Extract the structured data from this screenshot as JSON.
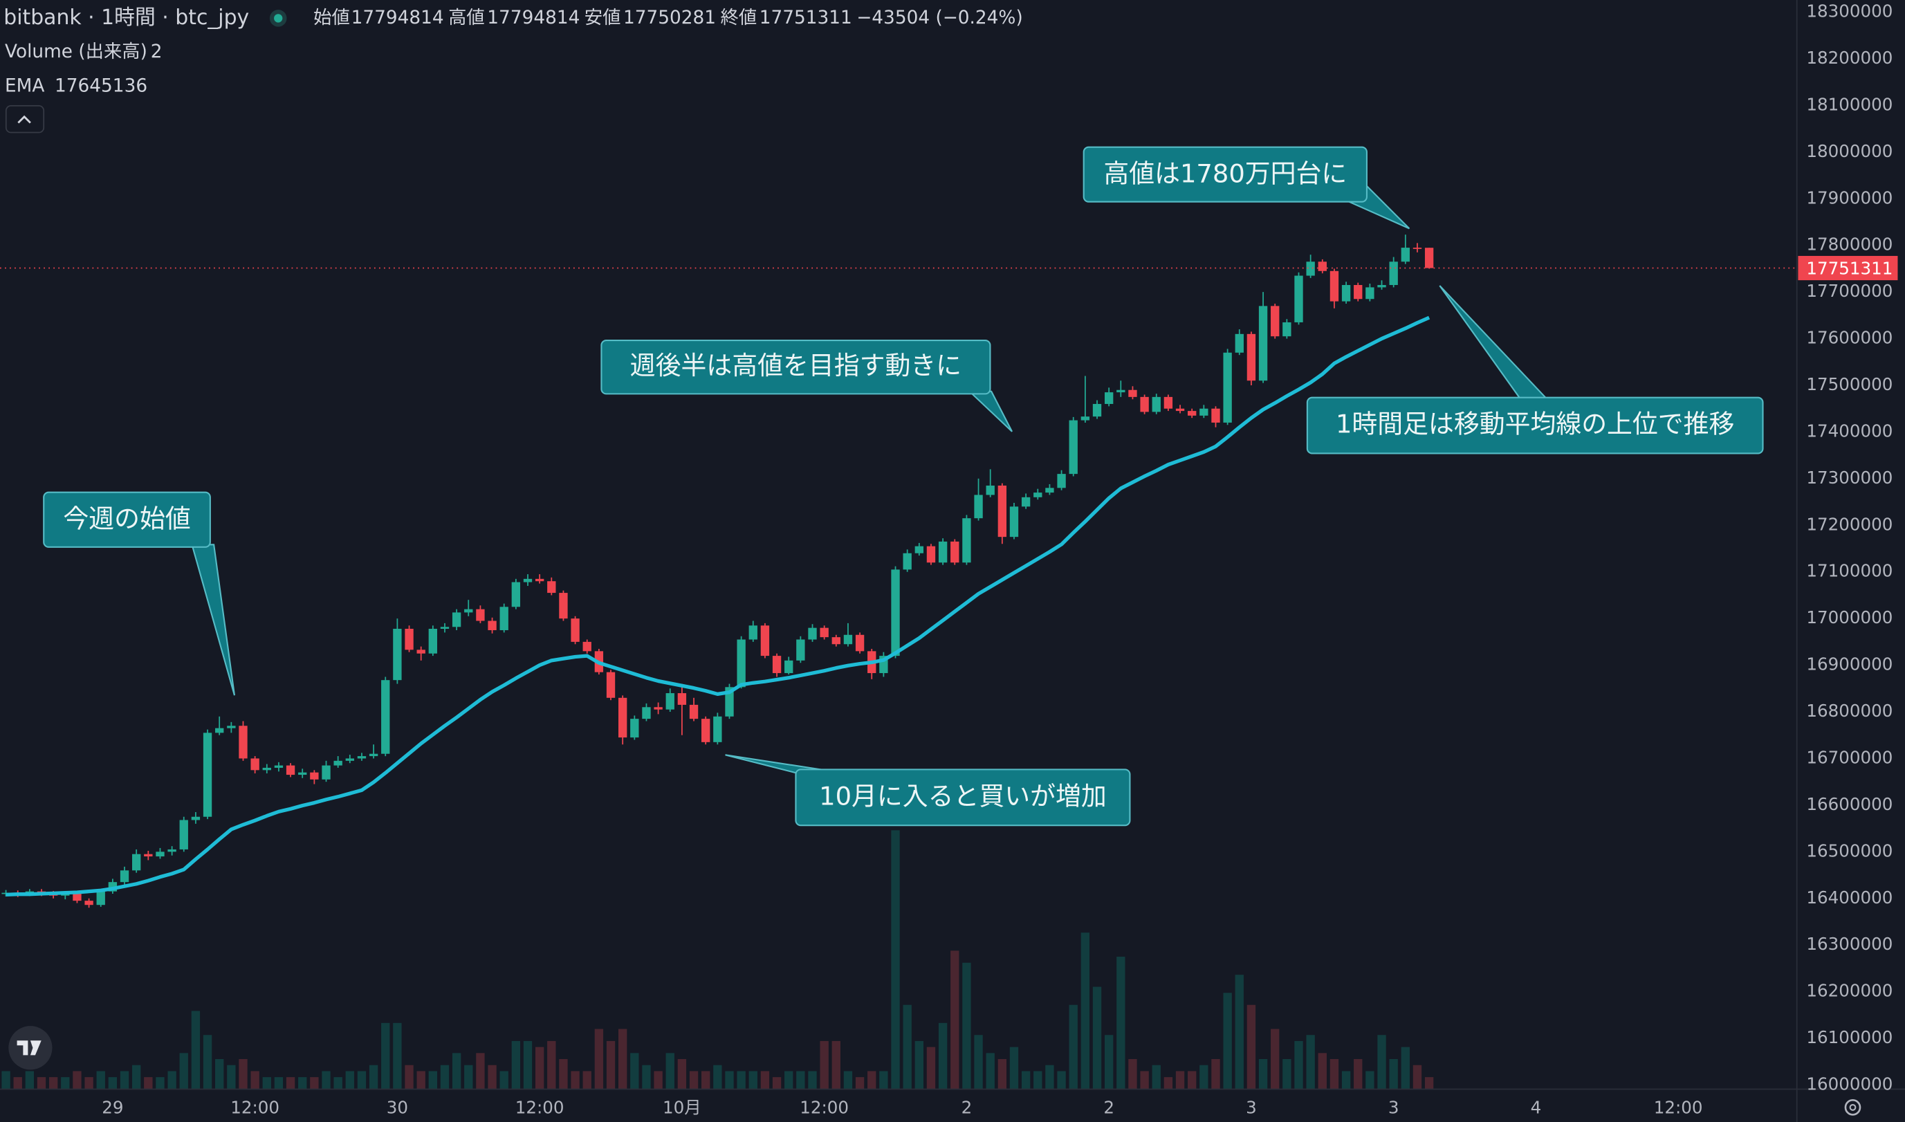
{
  "chart_data": {
    "type": "candlestick",
    "title": "bitbank · 1時間 · btc_jpy",
    "ohlc_labels": [
      "始値",
      "高値",
      "安値",
      "終値"
    ],
    "change": "−43504 (−0.24%)",
    "up_color": "#22ab94",
    "down_color": "#f0454f",
    "grid": false,
    "last_price_line": true,
    "open": [
      16410000,
      16412000,
      16409000,
      16415000,
      16410000,
      16406000,
      16410000,
      16395000,
      16386000,
      16415000,
      16435000,
      16460000,
      16495000,
      16490000,
      16500000,
      16505000,
      16568000,
      16575000,
      16755000,
      16765000,
      16770000,
      16700000,
      16675000,
      16680000,
      16685000,
      16665000,
      16670000,
      16655000,
      16685000,
      16695000,
      16700000,
      16705000,
      16710000,
      16868000,
      16978000,
      16933000,
      16925000,
      16978000,
      16982000,
      17013000,
      17020000,
      16995000,
      16975000,
      17025000,
      17078000,
      17085000,
      17080000,
      17055000,
      17000000,
      16950000,
      16930000,
      16885000,
      16830000,
      16745000,
      16785000,
      16810000,
      16805000,
      16840000,
      16815000,
      16785000,
      16735000,
      16790000,
      16853000,
      16955000,
      16985000,
      16920000,
      16883000,
      16910000,
      16955000,
      16980000,
      16960000,
      16945000,
      16965000,
      16930000,
      16883000,
      16920000,
      17105000,
      17140000,
      17155000,
      17120000,
      17165000,
      17120000,
      17215000,
      17265000,
      17285000,
      17175000,
      17240000,
      17260000,
      17270000,
      17280000,
      17310000,
      17425000,
      17433000,
      17460000,
      17485000,
      17490000,
      17475000,
      17443000,
      17475000,
      17450000,
      17445000,
      17435000,
      17450000,
      17420000,
      17570000,
      17610000,
      17510000,
      17670000,
      17605000,
      17635000,
      17735000,
      17765000,
      17745000,
      17680000,
      17715000,
      17685000,
      17710000,
      17715000,
      17765000,
      17795000,
      17794814
    ],
    "high": [
      16418000,
      16417000,
      16420000,
      16420000,
      16416000,
      16415000,
      16415000,
      16400000,
      16420000,
      16442000,
      16468000,
      16505000,
      16502000,
      16508000,
      16512000,
      16575000,
      16585000,
      16762000,
      16790000,
      16778000,
      16780000,
      16705000,
      16688000,
      16692000,
      16690000,
      16678000,
      16675000,
      16695000,
      16705000,
      16708000,
      16712000,
      16730000,
      16875000,
      17000000,
      16985000,
      16940000,
      16985000,
      16990000,
      17020000,
      17040000,
      17028000,
      17002000,
      17032000,
      17085000,
      17095000,
      17095000,
      17088000,
      17060000,
      17005000,
      16955000,
      16935000,
      16890000,
      16835000,
      16792000,
      16818000,
      16820000,
      16850000,
      16860000,
      16830000,
      16790000,
      16798000,
      16860000,
      16962000,
      16995000,
      16990000,
      16925000,
      16918000,
      16962000,
      16988000,
      16985000,
      16965000,
      16990000,
      16970000,
      16935000,
      16928000,
      17112000,
      17148000,
      17162000,
      17160000,
      17172000,
      17170000,
      17222000,
      17300000,
      17320000,
      17290000,
      17248000,
      17268000,
      17278000,
      17288000,
      17318000,
      17432000,
      17520000,
      17468000,
      17495000,
      17510000,
      17498000,
      17480000,
      17482000,
      17480000,
      17458000,
      17450000,
      17458000,
      17455000,
      17578000,
      17620000,
      17615000,
      17700000,
      17675000,
      17642000,
      17742000,
      17780000,
      17770000,
      17750000,
      17722000,
      17720000,
      17718000,
      17725000,
      17775000,
      17823000,
      17805000,
      17794814
    ],
    "low": [
      16404000,
      16403000,
      16405000,
      16405000,
      16400000,
      16398000,
      16390000,
      16380000,
      16382000,
      16410000,
      16430000,
      16455000,
      16482000,
      16485000,
      16492000,
      16500000,
      16560000,
      16570000,
      16750000,
      16755000,
      16695000,
      16668000,
      16668000,
      16672000,
      16660000,
      16658000,
      16645000,
      16650000,
      16680000,
      16690000,
      16695000,
      16700000,
      16705000,
      16860000,
      16928000,
      16910000,
      16920000,
      16970000,
      16975000,
      17005000,
      16990000,
      16968000,
      16970000,
      17020000,
      17070000,
      17075000,
      17050000,
      16995000,
      16945000,
      16925000,
      16880000,
      16825000,
      16730000,
      16740000,
      16780000,
      16795000,
      16800000,
      16750000,
      16780000,
      16730000,
      16730000,
      16785000,
      16850000,
      16950000,
      16915000,
      16875000,
      16880000,
      16905000,
      16950000,
      16955000,
      16940000,
      16940000,
      16925000,
      16870000,
      16875000,
      16915000,
      17100000,
      17135000,
      17115000,
      17115000,
      17115000,
      17115000,
      17210000,
      17260000,
      17160000,
      17170000,
      17235000,
      17255000,
      17265000,
      17275000,
      17305000,
      17420000,
      17428000,
      17455000,
      17475000,
      17470000,
      17438000,
      17438000,
      17445000,
      17440000,
      17430000,
      17430000,
      17410000,
      17415000,
      17565000,
      17500000,
      17505000,
      17600000,
      17600000,
      17630000,
      17730000,
      17740000,
      17665000,
      17675000,
      17680000,
      17680000,
      17705000,
      17710000,
      17760000,
      17785000,
      17750281
    ],
    "close": [
      16412000,
      16409000,
      16415000,
      16410000,
      16406000,
      16410000,
      16395000,
      16386000,
      16415000,
      16435000,
      16460000,
      16495000,
      16490000,
      16500000,
      16505000,
      16568000,
      16575000,
      16755000,
      16765000,
      16770000,
      16700000,
      16675000,
      16680000,
      16685000,
      16665000,
      16670000,
      16655000,
      16685000,
      16695000,
      16700000,
      16705000,
      16710000,
      16868000,
      16978000,
      16933000,
      16925000,
      16978000,
      16982000,
      17013000,
      17020000,
      16995000,
      16975000,
      17025000,
      17078000,
      17085000,
      17080000,
      17055000,
      17000000,
      16950000,
      16930000,
      16885000,
      16830000,
      16745000,
      16785000,
      16810000,
      16805000,
      16840000,
      16815000,
      16785000,
      16735000,
      16790000,
      16853000,
      16955000,
      16985000,
      16920000,
      16883000,
      16910000,
      16955000,
      16980000,
      16960000,
      16945000,
      16965000,
      16930000,
      16883000,
      16920000,
      17105000,
      17140000,
      17155000,
      17120000,
      17165000,
      17120000,
      17215000,
      17265000,
      17285000,
      17175000,
      17240000,
      17260000,
      17270000,
      17280000,
      17310000,
      17425000,
      17433000,
      17460000,
      17485000,
      17490000,
      17475000,
      17443000,
      17475000,
      17450000,
      17445000,
      17435000,
      17450000,
      17420000,
      17570000,
      17610000,
      17510000,
      17670000,
      17605000,
      17635000,
      17735000,
      17765000,
      17745000,
      17680000,
      17715000,
      17685000,
      17710000,
      17715000,
      17765000,
      17795000,
      17794814,
      17751311
    ],
    "volume": {
      "name": "Volume (出来高)",
      "up_color": "#123d3f",
      "down_color": "#4a2630",
      "values": [
        3,
        2,
        3,
        2,
        2,
        2,
        3,
        2,
        3,
        2,
        3,
        4,
        2,
        2,
        3,
        6,
        13,
        9,
        5,
        4,
        5,
        3,
        2,
        2,
        2,
        2,
        2,
        3,
        2,
        3,
        3,
        4,
        11,
        11,
        4,
        3,
        3,
        4,
        6,
        4,
        6,
        4,
        3,
        8,
        8,
        7,
        8,
        5,
        3,
        3,
        10,
        8,
        10,
        6,
        4,
        3,
        6,
        5,
        3,
        3,
        4,
        3,
        3,
        3,
        3,
        2,
        3,
        3,
        3,
        8,
        8,
        3,
        2,
        3,
        3,
        43,
        14,
        8,
        7,
        11,
        23,
        21,
        9,
        6,
        5,
        7,
        3,
        3,
        4,
        3,
        14,
        26,
        17,
        9,
        22,
        5,
        3,
        4,
        2,
        3,
        3,
        4,
        5,
        16,
        19,
        14,
        5,
        10,
        5,
        8,
        9,
        6,
        5,
        3,
        5,
        3,
        9,
        5,
        7,
        4,
        2
      ]
    },
    "ema": {
      "name": "EMA",
      "color": "#1fbcd6",
      "values": [
        16408000,
        16409000,
        16409000,
        16410000,
        16411000,
        16412000,
        16413000,
        16415000,
        16417000,
        16421000,
        16426000,
        16431000,
        16438000,
        16446000,
        16453000,
        16462000,
        16484000,
        16505000,
        16527000,
        16548000,
        16558000,
        16567000,
        16577000,
        16586000,
        16592000,
        16599000,
        16605000,
        16612000,
        16618000,
        16625000,
        16632000,
        16649000,
        16669000,
        16690000,
        16711000,
        16732000,
        16751000,
        16770000,
        16788000,
        16807000,
        16826000,
        16843000,
        16857000,
        16872000,
        16886000,
        16900000,
        16910000,
        16914000,
        16918000,
        16920000,
        16905000,
        16897000,
        16889000,
        16881000,
        16873000,
        16866000,
        16861000,
        16856000,
        16851000,
        16845000,
        16838000,
        16842000,
        16858000,
        16862000,
        16865000,
        16869000,
        16873000,
        16878000,
        16883000,
        16888000,
        16894000,
        16899000,
        16903000,
        16906000,
        16911000,
        16926000,
        16942000,
        16958000,
        16977000,
        16996000,
        17015000,
        17034000,
        17053000,
        17068000,
        17083000,
        17098000,
        17113000,
        17128000,
        17143000,
        17159000,
        17184000,
        17208000,
        17233000,
        17258000,
        17279000,
        17292000,
        17305000,
        17317000,
        17330000,
        17339000,
        17348000,
        17357000,
        17369000,
        17389000,
        17410000,
        17430000,
        17448000,
        17462000,
        17477000,
        17491000,
        17506000,
        17524000,
        17547000,
        17561000,
        17574000,
        17587000,
        17600000,
        17611000,
        17622000,
        17634000,
        17645136
      ]
    },
    "xlim": [
      -0.5,
      150.9
    ],
    "xticks": [
      {
        "value": 9,
        "label": "29"
      },
      {
        "value": 21,
        "label": "12:00"
      },
      {
        "value": 33,
        "label": "30"
      },
      {
        "value": 45,
        "label": "12:00"
      },
      {
        "value": 57,
        "label": "10月"
      },
      {
        "value": 69,
        "label": "12:00"
      },
      {
        "value": 81,
        "label": "2"
      },
      {
        "value": 93,
        "label": "2"
      },
      {
        "value": 105,
        "label": "3"
      },
      {
        "value": 117,
        "label": "3"
      },
      {
        "value": 129,
        "label": "4"
      },
      {
        "value": 141,
        "label": "12:00"
      }
    ],
    "ylim": [
      15991000,
      18326000
    ],
    "yticks": [
      16000000,
      16100000,
      16200000,
      16300000,
      16400000,
      16500000,
      16600000,
      16700000,
      16800000,
      16900000,
      17000000,
      17100000,
      17200000,
      17300000,
      17400000,
      17500000,
      17600000,
      17700000,
      17800000,
      17900000,
      18000000,
      18100000,
      18200000,
      18300000
    ],
    "annotations": [
      "今週の始値",
      "週後半は高値を目指す動きに",
      "高値は1780万円台に",
      "1時間足は移動平均線の上位で推移",
      "10月に入ると買いが増加"
    ]
  }
}
